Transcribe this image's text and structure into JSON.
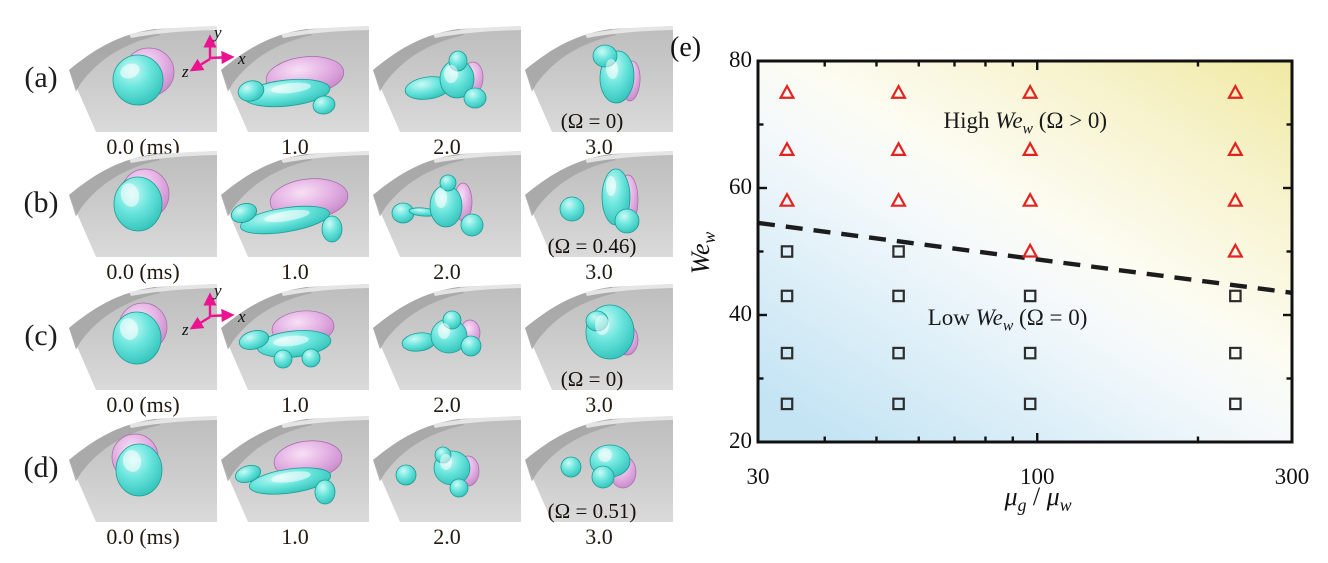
{
  "figure": {
    "left_panels": {
      "time_labels": [
        "0.0 (ms)",
        "1.0",
        "2.0",
        "3.0"
      ],
      "rows": [
        {
          "id": "a",
          "label": "(a)",
          "omega": "(Ω = 0)",
          "has_axes_triad": true
        },
        {
          "id": "b",
          "label": "(b)",
          "omega": "(Ω = 0.46)",
          "has_axes_triad": false
        },
        {
          "id": "c",
          "label": "(c)",
          "omega": "(Ω = 0)",
          "has_axes_triad": true
        },
        {
          "id": "d",
          "label": "(d)",
          "omega": "(Ω = 0.51)",
          "has_axes_triad": false
        }
      ],
      "triad_axis_labels": {
        "x": "x",
        "y": "y",
        "z": "z"
      },
      "colors": {
        "droplet_cyan": "#5ee3da",
        "droplet_pink": "#e0a9e0",
        "surface_gray": "#c9c9c9",
        "triad_arrow": "#ec1390"
      }
    },
    "panel_e_label": "(e)"
  },
  "chart_data": {
    "type": "scatter",
    "title": "",
    "xlabel": "μg / μw",
    "ylabel": "Wew",
    "xlabel_rich": [
      {
        "t": "μ",
        "i": true
      },
      {
        "t": "g",
        "i": true,
        "sub": true
      },
      {
        "t": " / ",
        "i": false
      },
      {
        "t": "μ",
        "i": true
      },
      {
        "t": "w",
        "i": true,
        "sub": true
      }
    ],
    "ylabel_rich": [
      {
        "t": "We",
        "i": true
      },
      {
        "t": "w",
        "i": true,
        "sub": true
      }
    ],
    "x_scale": "log",
    "xlim": [
      30,
      300
    ],
    "ylim": [
      20,
      80
    ],
    "x_major_ticks": [
      30,
      100,
      300
    ],
    "x_major_tick_labels": [
      "30",
      "100",
      "300"
    ],
    "x_minor_ticks": [
      40,
      50,
      60,
      70,
      80,
      90,
      200
    ],
    "y_major_ticks": [
      20,
      40,
      60,
      80
    ],
    "y_major_tick_labels": [
      "20",
      "40",
      "60",
      "80"
    ],
    "y_minor_ticks": [
      30,
      50,
      70
    ],
    "grid": false,
    "legend": "none",
    "series": [
      {
        "name": "High Wew (Ω > 0)",
        "marker": "open-triangle",
        "color": "#e42320",
        "points": [
          [
            34,
            75
          ],
          [
            55,
            75
          ],
          [
            97,
            75
          ],
          [
            235,
            75
          ],
          [
            34,
            66
          ],
          [
            55,
            66
          ],
          [
            97,
            66
          ],
          [
            235,
            66
          ],
          [
            34,
            58
          ],
          [
            55,
            58
          ],
          [
            97,
            58
          ],
          [
            235,
            58
          ],
          [
            97,
            50
          ],
          [
            235,
            50
          ]
        ]
      },
      {
        "name": "Low Wew (Ω = 0)",
        "marker": "open-square",
        "color": "#2d2d2d",
        "points": [
          [
            34,
            50
          ],
          [
            55,
            50
          ],
          [
            34,
            43
          ],
          [
            55,
            43
          ],
          [
            97,
            43
          ],
          [
            235,
            43
          ],
          [
            34,
            34
          ],
          [
            55,
            34
          ],
          [
            97,
            34
          ],
          [
            235,
            34
          ],
          [
            34,
            26
          ],
          [
            55,
            26
          ],
          [
            97,
            26
          ],
          [
            235,
            26
          ]
        ]
      }
    ],
    "boundary_line": {
      "style": "dashed",
      "color": "#1c1c1c",
      "from": [
        30,
        54.5
      ],
      "to": [
        300,
        43.5
      ]
    },
    "annotations": [
      {
        "text": "High Wew (Ω > 0)",
        "x": 95,
        "y": 70.5,
        "rich": [
          {
            "t": "High ",
            "i": false
          },
          {
            "t": "We",
            "i": true
          },
          {
            "t": "w",
            "i": true,
            "sub": true
          },
          {
            "t": "  (Ω > 0)",
            "i": false
          }
        ]
      },
      {
        "text": "Low Wew (Ω = 0)",
        "x": 88,
        "y": 39.5,
        "rich": [
          {
            "t": "Low ",
            "i": false
          },
          {
            "t": "We",
            "i": true
          },
          {
            "t": "w",
            "i": true,
            "sub": true
          },
          {
            "t": "  (Ω = 0)",
            "i": false
          }
        ]
      }
    ],
    "background_gradient": {
      "top_right": "#f0e9a2",
      "middle": "#fcfcf2",
      "bottom_left": "#c4e4f4"
    }
  }
}
